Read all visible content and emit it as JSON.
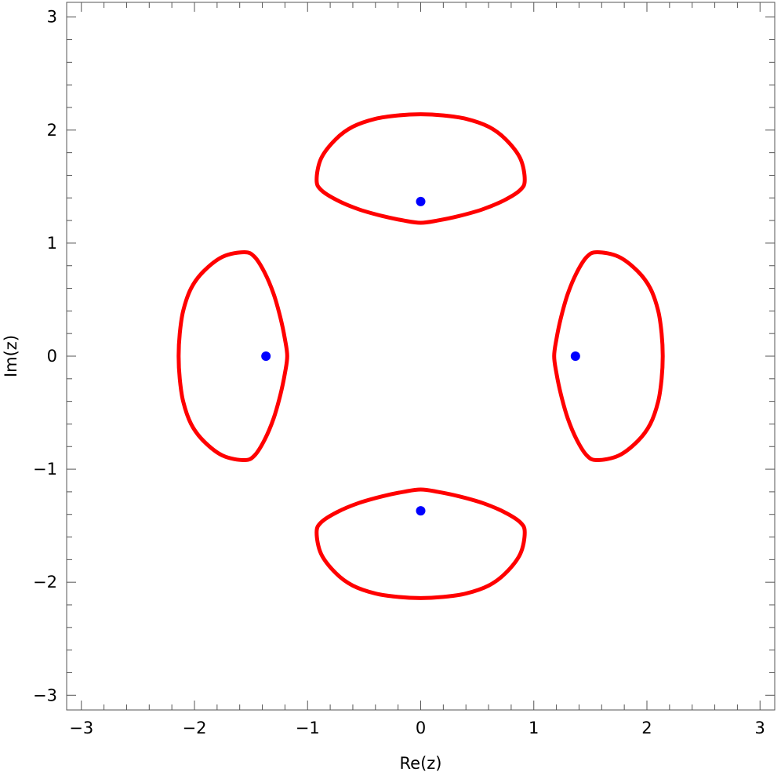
{
  "chart_data": {
    "type": "scatter",
    "title": "",
    "xlabel": "Re(z)",
    "ylabel": "Im(z)",
    "xlim": [
      -3.13,
      3.13
    ],
    "ylim": [
      -3.13,
      3.13
    ],
    "xticks": [
      -3,
      -2,
      -1,
      0,
      1,
      2,
      3
    ],
    "xtick_labels": [
      "−3",
      "−2",
      "−1",
      "0",
      "1",
      "2",
      "3"
    ],
    "yticks": [
      -3,
      -2,
      -1,
      0,
      1,
      2,
      3
    ],
    "ytick_labels": [
      "−3",
      "−2",
      "−1",
      "0",
      "1",
      "2",
      "3"
    ],
    "minor_tick_step": 0.2,
    "grid": false,
    "legend": "none",
    "series": [
      {
        "kind": "points",
        "color": "#0000ff",
        "points": [
          [
            1.368,
            0
          ],
          [
            -1.368,
            0
          ],
          [
            0,
            1.368
          ],
          [
            0,
            -1.368
          ]
        ]
      },
      {
        "kind": "closed-curve",
        "color": "#ff0000",
        "points": [
          [
            2.14,
            0
          ],
          [
            2.13,
            0.2
          ],
          [
            2.1,
            0.4
          ],
          [
            2.03,
            0.6
          ],
          [
            1.92,
            0.75
          ],
          [
            1.75,
            0.88
          ],
          [
            1.56,
            0.92
          ],
          [
            1.47,
            0.88
          ],
          [
            1.38,
            0.74
          ],
          [
            1.3,
            0.55
          ],
          [
            1.24,
            0.34
          ],
          [
            1.2,
            0.15
          ],
          [
            1.18,
            0
          ],
          [
            1.2,
            -0.15
          ],
          [
            1.24,
            -0.34
          ],
          [
            1.3,
            -0.55
          ],
          [
            1.38,
            -0.74
          ],
          [
            1.47,
            -0.88
          ],
          [
            1.56,
            -0.92
          ],
          [
            1.75,
            -0.88
          ],
          [
            1.92,
            -0.75
          ],
          [
            2.03,
            -0.6
          ],
          [
            2.1,
            -0.4
          ],
          [
            2.13,
            -0.2
          ]
        ]
      },
      {
        "kind": "closed-curve",
        "color": "#ff0000",
        "points": [
          [
            -2.14,
            0
          ],
          [
            -2.13,
            0.2
          ],
          [
            -2.1,
            0.4
          ],
          [
            -2.03,
            0.6
          ],
          [
            -1.92,
            0.75
          ],
          [
            -1.75,
            0.88
          ],
          [
            -1.56,
            0.92
          ],
          [
            -1.47,
            0.88
          ],
          [
            -1.38,
            0.74
          ],
          [
            -1.3,
            0.55
          ],
          [
            -1.24,
            0.34
          ],
          [
            -1.2,
            0.15
          ],
          [
            -1.18,
            0
          ],
          [
            -1.2,
            -0.15
          ],
          [
            -1.24,
            -0.34
          ],
          [
            -1.3,
            -0.55
          ],
          [
            -1.38,
            -0.74
          ],
          [
            -1.47,
            -0.88
          ],
          [
            -1.56,
            -0.92
          ],
          [
            -1.75,
            -0.88
          ],
          [
            -1.92,
            -0.75
          ],
          [
            -2.03,
            -0.6
          ],
          [
            -2.1,
            -0.4
          ],
          [
            -2.13,
            -0.2
          ]
        ]
      },
      {
        "kind": "closed-curve",
        "color": "#ff0000",
        "points": [
          [
            0,
            2.14
          ],
          [
            0.2,
            2.13
          ],
          [
            0.4,
            2.1
          ],
          [
            0.6,
            2.03
          ],
          [
            0.75,
            1.92
          ],
          [
            0.88,
            1.75
          ],
          [
            0.92,
            1.56
          ],
          [
            0.88,
            1.47
          ],
          [
            0.74,
            1.38
          ],
          [
            0.55,
            1.3
          ],
          [
            0.34,
            1.24
          ],
          [
            0.15,
            1.2
          ],
          [
            0,
            1.18
          ],
          [
            -0.15,
            1.2
          ],
          [
            -0.34,
            1.24
          ],
          [
            -0.55,
            1.3
          ],
          [
            -0.74,
            1.38
          ],
          [
            -0.88,
            1.47
          ],
          [
            -0.92,
            1.56
          ],
          [
            -0.88,
            1.75
          ],
          [
            -0.75,
            1.92
          ],
          [
            -0.6,
            2.03
          ],
          [
            -0.4,
            2.1
          ],
          [
            -0.2,
            2.13
          ]
        ]
      },
      {
        "kind": "closed-curve",
        "color": "#ff0000",
        "points": [
          [
            0,
            -2.14
          ],
          [
            0.2,
            -2.13
          ],
          [
            0.4,
            -2.1
          ],
          [
            0.6,
            -2.03
          ],
          [
            0.75,
            -1.92
          ],
          [
            0.88,
            -1.75
          ],
          [
            0.92,
            -1.56
          ],
          [
            0.88,
            -1.47
          ],
          [
            0.74,
            -1.38
          ],
          [
            0.55,
            -1.3
          ],
          [
            0.34,
            -1.24
          ],
          [
            0.15,
            -1.2
          ],
          [
            0,
            -1.18
          ],
          [
            -0.15,
            -1.2
          ],
          [
            -0.34,
            -1.24
          ],
          [
            -0.55,
            -1.3
          ],
          [
            -0.74,
            -1.38
          ],
          [
            -0.88,
            -1.47
          ],
          [
            -0.92,
            -1.56
          ],
          [
            -0.88,
            -1.75
          ],
          [
            -0.75,
            -1.92
          ],
          [
            -0.6,
            -2.03
          ],
          [
            -0.4,
            -2.1
          ],
          [
            -0.2,
            -2.13
          ]
        ]
      }
    ]
  }
}
